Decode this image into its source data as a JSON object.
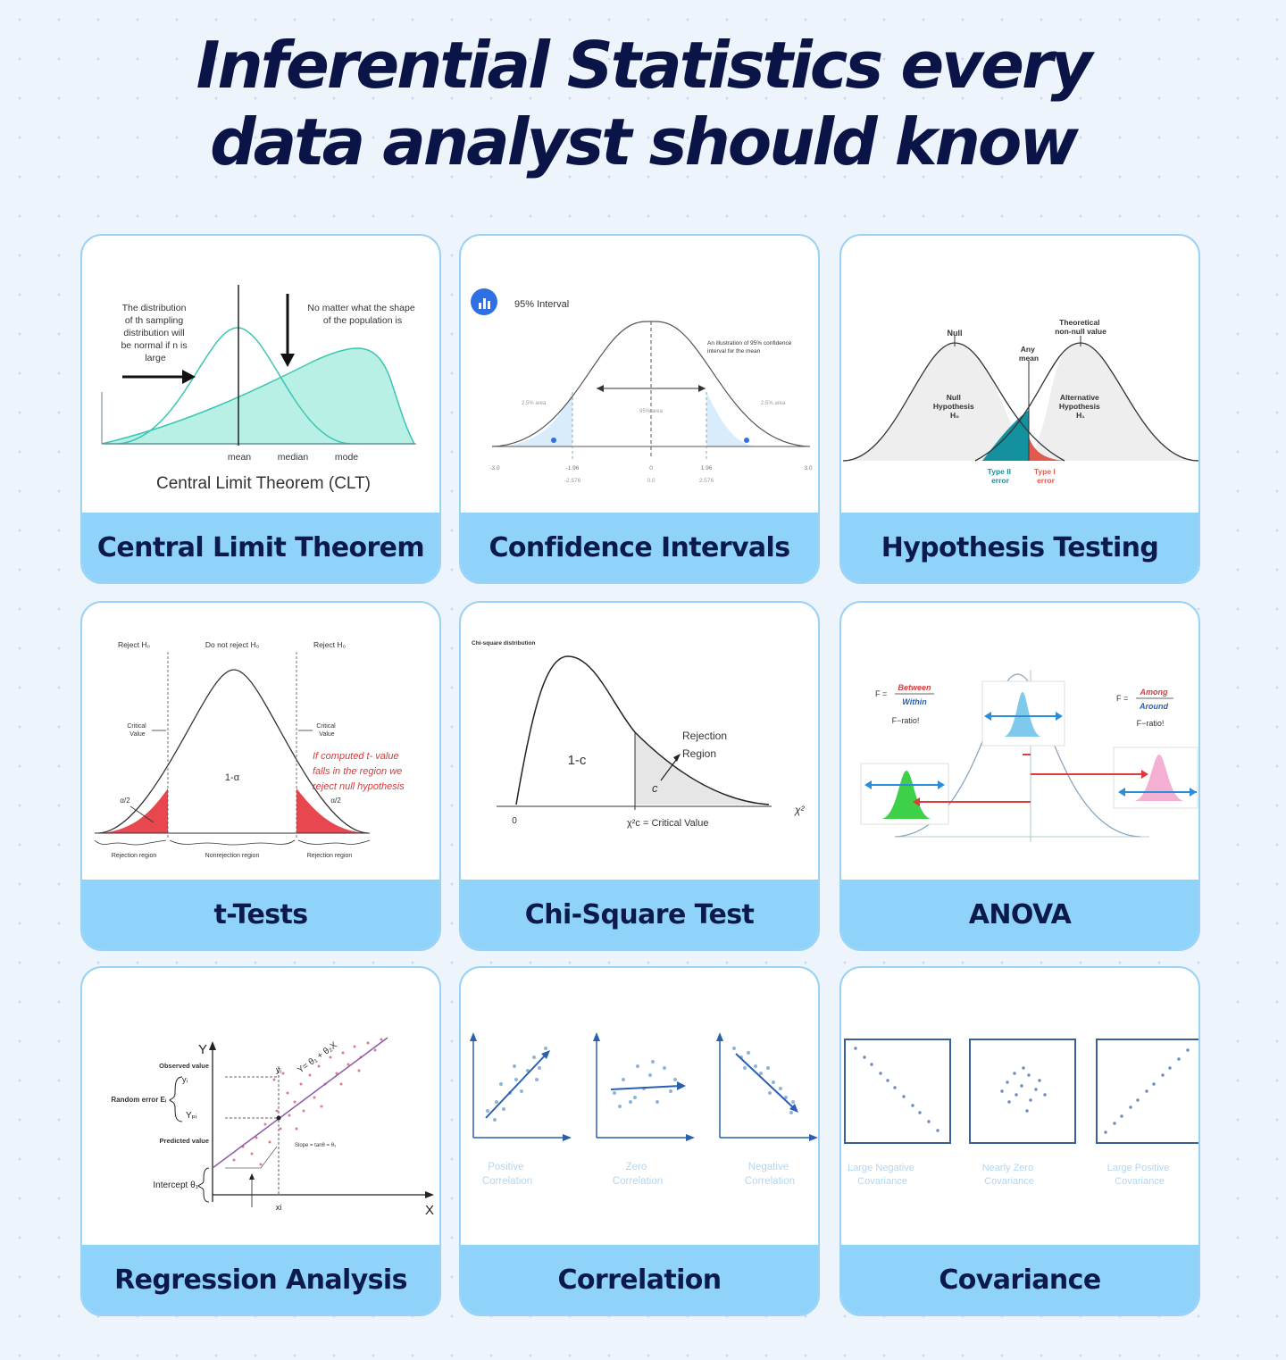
{
  "title": {
    "line1": "Inferential Statistics every",
    "line2": "data analyst should know"
  },
  "cards": [
    {
      "label": "Central Limit Theorem",
      "figure": {
        "left_note": [
          "The distribution",
          "of th sampling",
          "distribution will",
          "be normal if n is",
          "large"
        ],
        "right_note": [
          "No matter what the shape",
          "of the population is"
        ],
        "axis_labels": [
          "mean",
          "median",
          "mode"
        ],
        "caption": "Central Limit Theorem (CLT)"
      }
    },
    {
      "label": "Confidence Intervals",
      "figure": {
        "badge_icon": "bar-chart-icon",
        "heading": "95% Interval",
        "note": [
          "An illustration of 95% confidence",
          "interval for the mean"
        ],
        "tail_left": "2.5% area",
        "center": "95% area",
        "tail_right": "2.5% area",
        "ticks": [
          "-3.0",
          "-1.96",
          "0",
          "1.96",
          "3.0"
        ],
        "ticks2": [
          "-2.576",
          "0.0",
          "2.576"
        ]
      }
    },
    {
      "label": "Hypothesis Testing",
      "figure": {
        "null_label": "Null",
        "alt_label": [
          "Theoretical",
          "non-null value"
        ],
        "any_mean": [
          "Any",
          "mean"
        ],
        "null_h": [
          "Null",
          "Hypothesis",
          "H₀"
        ],
        "alt_h": [
          "Alternative",
          "Hypothesis",
          "H₁"
        ],
        "type2": [
          "Type II",
          "error"
        ],
        "type1": [
          "Type I",
          "error"
        ],
        "colors": {
          "type2": "#14919f",
          "type1": "#e05a4d"
        }
      }
    },
    {
      "label": "t-Tests",
      "figure": {
        "reject_left": "Reject H₀",
        "do_not_reject": "Do not reject H₀",
        "reject_right": "Reject H₀",
        "critical_left": [
          "Critical",
          "Value"
        ],
        "critical_right": [
          "Critical",
          "Value"
        ],
        "center": "1-α",
        "alpha_half": "α/2",
        "handwritten": [
          "If computed t- value",
          "falls in the region we",
          "reject null hypothesis"
        ],
        "region_left": "Rejection region",
        "region_mid": "Nonrejection region",
        "region_right": "Rejection region",
        "colors": {
          "tail": "#e8474f"
        }
      }
    },
    {
      "label": "Chi-Square Test",
      "figure": {
        "heading": "Chi-square distribution",
        "center": "1-c",
        "tail": "c",
        "rejection": [
          "Rejection",
          "Region"
        ],
        "origin": "0",
        "critical": "χ²c = Critical Value",
        "axis": "χ²"
      }
    },
    {
      "label": "ANOVA",
      "figure": {
        "left_formula": {
          "prefix": "F =",
          "num": "Between",
          "den": "Within"
        },
        "right_formula": {
          "prefix": "F =",
          "num": "Among",
          "den": "Around"
        },
        "left_note": "F−ratio!",
        "right_note": "F−ratio!",
        "colors": {
          "green": "#3fd04a",
          "blue": "#7ec9ec",
          "pink": "#f3b0d2",
          "arrow_blue": "#2a8fd8",
          "arrow_red": "#e03b3b"
        }
      }
    },
    {
      "label": "Regression Analysis",
      "figure": {
        "y_axis": "Y",
        "x_axis": "X",
        "equation": "Y= θ₁ + θ₂X",
        "observed": "Observed value",
        "random_error": "Random error Eᵢ",
        "predicted": "Predicted value",
        "intercept": "Intercept θ₁",
        "slope": "Slope = tanθ = θ₂",
        "yi": "yᵢ",
        "ypi": "Yₚᵢ",
        "xi": "xi"
      }
    },
    {
      "label": "Correlation",
      "figure": {
        "panels": [
          [
            "Positive",
            "Correlation"
          ],
          [
            "Zero",
            "Correlation"
          ],
          [
            "Negative",
            "Correlation"
          ]
        ]
      }
    },
    {
      "label": "Covariance",
      "figure": {
        "panels": [
          [
            "Large Negative",
            "Covariance"
          ],
          [
            "Nearly Zero",
            "Covariance"
          ],
          [
            "Large Positive",
            "Covariance"
          ]
        ]
      }
    }
  ]
}
